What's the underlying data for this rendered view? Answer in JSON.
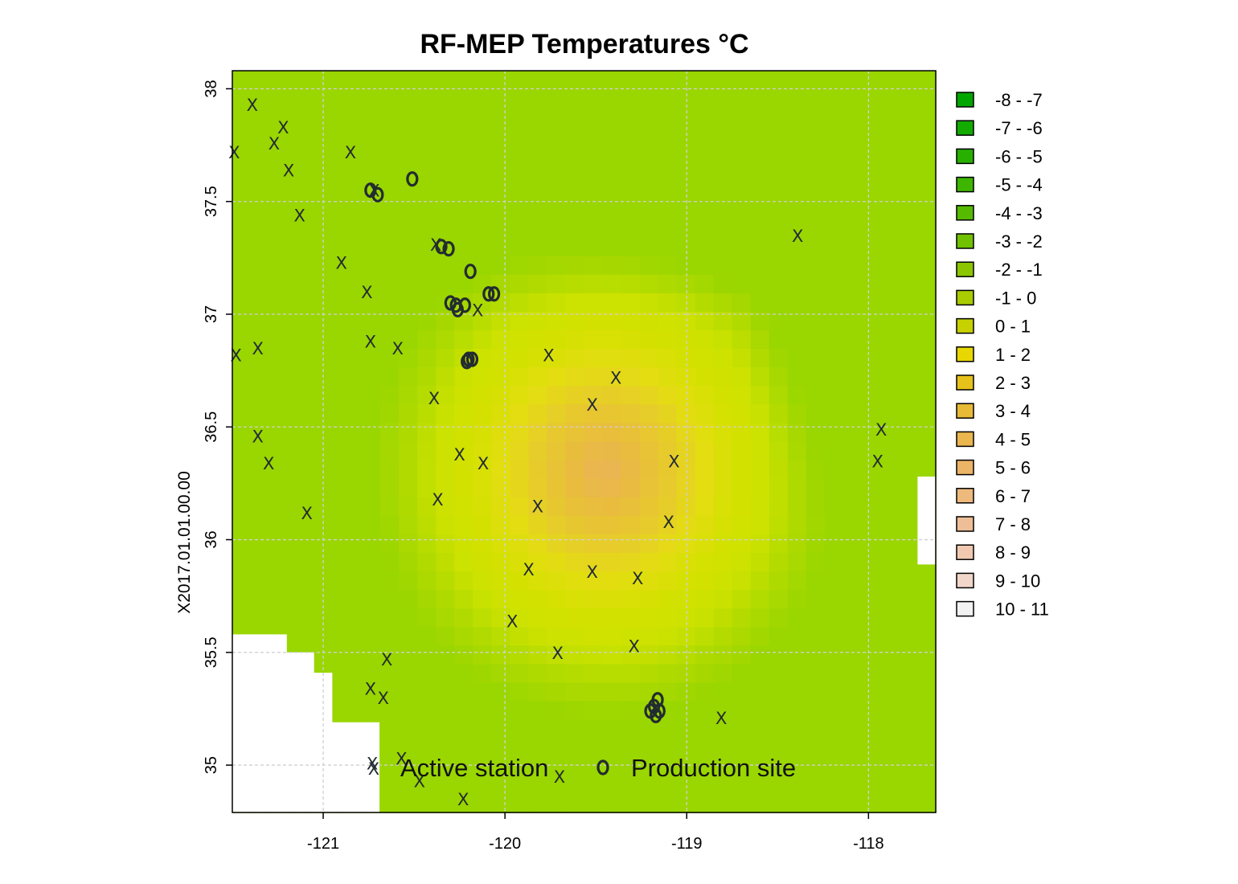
{
  "chart_data": {
    "type": "heatmap",
    "title": "RF-MEP Temperatures °C",
    "ylabel": "X2017.01.01.00.00",
    "xlim": [
      -121.5,
      -117.63
    ],
    "ylim": [
      34.79,
      38.08
    ],
    "x_ticks": [
      "-121",
      "-120",
      "-119",
      "-118"
    ],
    "x_tick_values": [
      -121,
      -120,
      -119,
      -118
    ],
    "y_ticks": [
      "35",
      "35.5",
      "36",
      "36.5",
      "37",
      "37.5",
      "38"
    ],
    "y_tick_values": [
      35,
      35.5,
      36,
      36.5,
      37,
      37.5,
      38
    ],
    "grid": true,
    "legend_position": "right",
    "classes": [
      {
        "label": "-8 - -7",
        "color": "#00A600"
      },
      {
        "label": "-7 - -6",
        "color": "#13AB00"
      },
      {
        "label": "-6 - -5",
        "color": "#28B000"
      },
      {
        "label": "-5 - -4",
        "color": "#3EB600"
      },
      {
        "label": "-4 - -3",
        "color": "#56BB00"
      },
      {
        "label": "-3 - -2",
        "color": "#70C100"
      },
      {
        "label": "-2 - -1",
        "color": "#8BC600"
      },
      {
        "label": "-1 - 0",
        "color": "#A8CC00"
      },
      {
        "label": "0 - 1",
        "color": "#C7D100"
      },
      {
        "label": "1 - 2",
        "color": "#E8D700"
      },
      {
        "label": "2 - 3",
        "color": "#E6C21A"
      },
      {
        "label": "3 - 4",
        "color": "#E8BA36"
      },
      {
        "label": "4 - 5",
        "color": "#EAB64E"
      },
      {
        "label": "5 - 6",
        "color": "#EBB466"
      },
      {
        "label": "6 - 7",
        "color": "#EDB97D"
      },
      {
        "label": "7 - 8",
        "color": "#EEBF97"
      },
      {
        "label": "8 - 9",
        "color": "#F0C9B0"
      },
      {
        "label": "9 - 10",
        "color": "#F1D6CA"
      },
      {
        "label": "10 - 11",
        "color": "#F2F2F2"
      }
    ],
    "surface_colors": {
      "green_dark": "#9AD600",
      "green_mid": "#AFDA00",
      "green_light": "#CCE200",
      "yellow_green": "#D4E100",
      "yellow": "#E4DD12",
      "yellow_orange": "#E7CB2C",
      "orange": "#E9BC3E",
      "tan": "#EAB458",
      "missing": "#FFFFFF"
    },
    "point_legend": [
      {
        "symbol": "x",
        "label": "Active station"
      },
      {
        "symbol": "o",
        "label": "Production site"
      }
    ],
    "active_stations": [
      [
        -121.39,
        37.93
      ],
      [
        -121.22,
        37.83
      ],
      [
        -121.27,
        37.76
      ],
      [
        -121.49,
        37.72
      ],
      [
        -120.85,
        37.72
      ],
      [
        -121.19,
        37.64
      ],
      [
        -120.72,
        37.55
      ],
      [
        -121.13,
        37.44
      ],
      [
        -120.9,
        37.23
      ],
      [
        -120.38,
        37.31
      ],
      [
        -120.76,
        37.1
      ],
      [
        -120.15,
        37.02
      ],
      [
        -121.36,
        36.85
      ],
      [
        -121.48,
        36.82
      ],
      [
        -120.74,
        36.88
      ],
      [
        -120.59,
        36.85
      ],
      [
        -119.76,
        36.82
      ],
      [
        -119.39,
        36.72
      ],
      [
        -120.39,
        36.63
      ],
      [
        -119.52,
        36.6
      ],
      [
        -121.36,
        36.46
      ],
      [
        -121.3,
        36.34
      ],
      [
        -120.25,
        36.38
      ],
      [
        -120.12,
        36.34
      ],
      [
        -119.07,
        36.35
      ],
      [
        -118.39,
        37.35
      ],
      [
        -117.93,
        36.49
      ],
      [
        -117.95,
        36.35
      ],
      [
        -121.09,
        36.12
      ],
      [
        -120.37,
        36.18
      ],
      [
        -119.82,
        36.15
      ],
      [
        -119.1,
        36.08
      ],
      [
        -119.87,
        35.87
      ],
      [
        -119.52,
        35.86
      ],
      [
        -119.27,
        35.83
      ],
      [
        -119.96,
        35.64
      ],
      [
        -119.71,
        35.5
      ],
      [
        -119.29,
        35.53
      ],
      [
        -120.65,
        35.47
      ],
      [
        -120.74,
        35.34
      ],
      [
        -120.67,
        35.3
      ],
      [
        -118.81,
        35.21
      ],
      [
        -120.73,
        35.01
      ],
      [
        -120.57,
        35.03
      ],
      [
        -120.47,
        34.93
      ],
      [
        -119.7,
        34.95
      ],
      [
        -120.23,
        34.85
      ]
    ],
    "production_sites": [
      [
        -120.51,
        37.6
      ],
      [
        -120.74,
        37.55
      ],
      [
        -120.7,
        37.53
      ],
      [
        -120.35,
        37.3
      ],
      [
        -120.31,
        37.29
      ],
      [
        -120.19,
        37.19
      ],
      [
        -120.09,
        37.09
      ],
      [
        -120.06,
        37.09
      ],
      [
        -120.3,
        37.05
      ],
      [
        -120.27,
        37.04
      ],
      [
        -120.22,
        37.04
      ],
      [
        -120.26,
        37.02
      ],
      [
        -120.2,
        36.8
      ],
      [
        -120.18,
        36.8
      ],
      [
        -120.21,
        36.79
      ],
      [
        -119.16,
        35.29
      ],
      [
        -119.18,
        35.26
      ],
      [
        -119.15,
        35.24
      ],
      [
        -119.2,
        35.24
      ],
      [
        -119.17,
        35.22
      ]
    ]
  }
}
